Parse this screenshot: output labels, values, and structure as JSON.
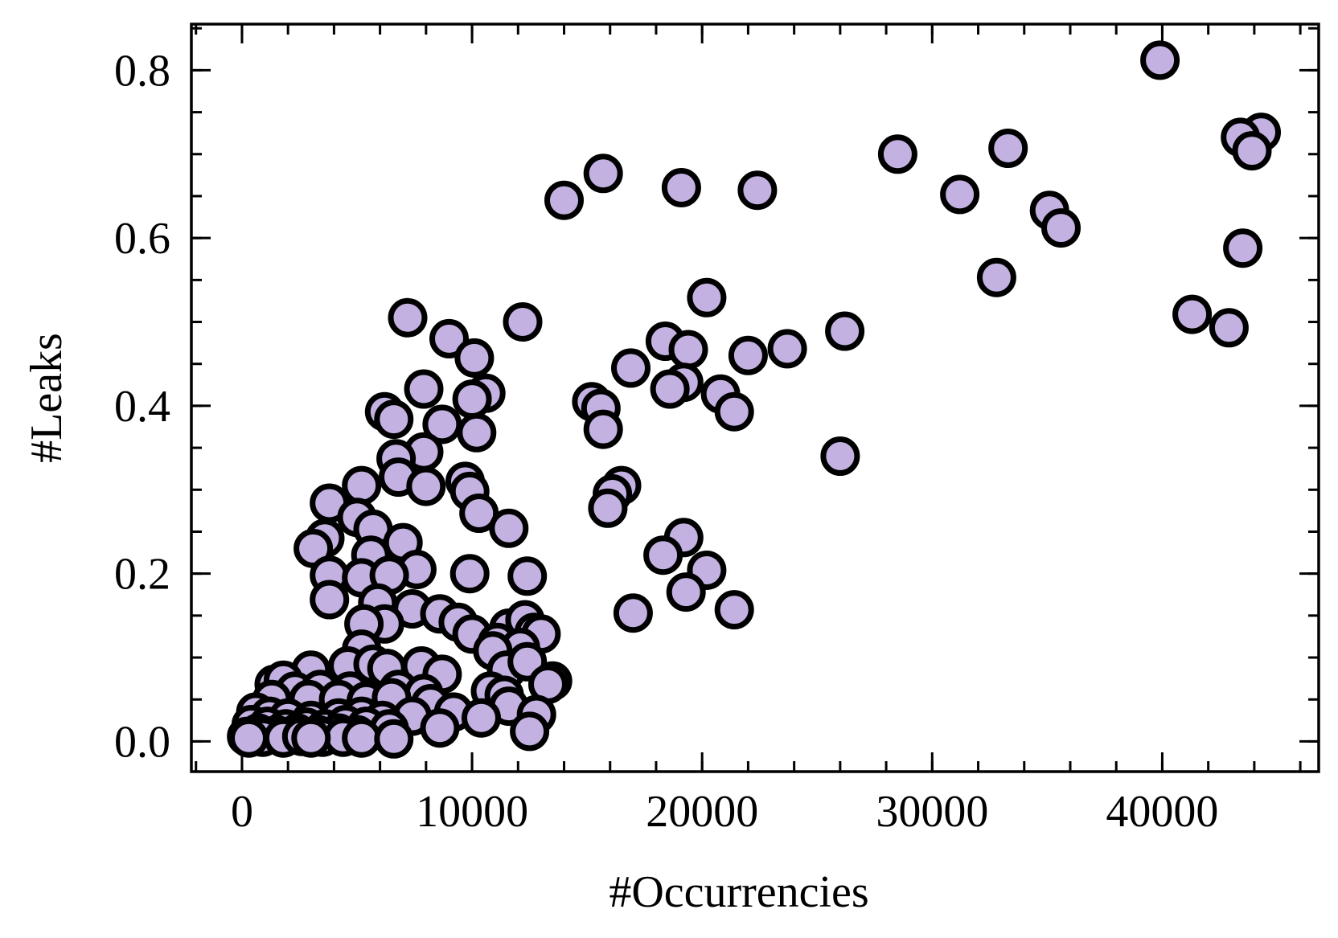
{
  "chart_data": {
    "type": "scatter",
    "title": "",
    "xlabel": "#Occurrencies",
    "ylabel": "#Leaks",
    "xlim": [
      -2200,
      46800
    ],
    "ylim": [
      -0.036,
      0.855
    ],
    "x_ticks": [
      0,
      10000,
      20000,
      30000,
      40000
    ],
    "x_tick_labels": [
      "0",
      "10000",
      "20000",
      "30000",
      "40000"
    ],
    "y_ticks": [
      0.0,
      0.2,
      0.4,
      0.6,
      0.8
    ],
    "y_tick_labels": [
      "0.0",
      "0.2",
      "0.4",
      "0.6",
      "0.8"
    ],
    "x_minor_step": 2000,
    "y_minor_step": 0.05,
    "grid": false,
    "legend": "none",
    "marker_fill": "#c3b1e1",
    "marker_edge": "#000000",
    "series": [
      {
        "points": [
          [
            39900,
            0.812
          ],
          [
            44300,
            0.726
          ],
          [
            43400,
            0.72
          ],
          [
            43900,
            0.704
          ],
          [
            43500,
            0.588
          ],
          [
            41300,
            0.509
          ],
          [
            42900,
            0.493
          ],
          [
            33300,
            0.707
          ],
          [
            28500,
            0.7
          ],
          [
            31200,
            0.652
          ],
          [
            35100,
            0.633
          ],
          [
            35600,
            0.612
          ],
          [
            32800,
            0.553
          ],
          [
            15700,
            0.677
          ],
          [
            19100,
            0.66
          ],
          [
            22400,
            0.657
          ],
          [
            14000,
            0.645
          ],
          [
            20200,
            0.529
          ],
          [
            26200,
            0.489
          ],
          [
            23700,
            0.468
          ],
          [
            18400,
            0.477
          ],
          [
            19400,
            0.467
          ],
          [
            22000,
            0.46
          ],
          [
            16900,
            0.445
          ],
          [
            19200,
            0.428
          ],
          [
            18600,
            0.42
          ],
          [
            20800,
            0.414
          ],
          [
            21400,
            0.393
          ],
          [
            15200,
            0.405
          ],
          [
            15600,
            0.397
          ],
          [
            15700,
            0.372
          ],
          [
            26000,
            0.34
          ],
          [
            16500,
            0.305
          ],
          [
            16100,
            0.295
          ],
          [
            15900,
            0.278
          ],
          [
            19200,
            0.243
          ],
          [
            18300,
            0.222
          ],
          [
            20200,
            0.204
          ],
          [
            19300,
            0.178
          ],
          [
            17000,
            0.153
          ],
          [
            21400,
            0.157
          ],
          [
            7200,
            0.505
          ],
          [
            12200,
            0.5
          ],
          [
            9000,
            0.48
          ],
          [
            10100,
            0.457
          ],
          [
            7900,
            0.42
          ],
          [
            10600,
            0.415
          ],
          [
            10000,
            0.408
          ],
          [
            6200,
            0.393
          ],
          [
            6600,
            0.384
          ],
          [
            8700,
            0.378
          ],
          [
            10200,
            0.368
          ],
          [
            7900,
            0.345
          ],
          [
            6700,
            0.337
          ],
          [
            6800,
            0.315
          ],
          [
            9700,
            0.31
          ],
          [
            8000,
            0.304
          ],
          [
            9900,
            0.298
          ],
          [
            5200,
            0.305
          ],
          [
            3800,
            0.284
          ],
          [
            10300,
            0.272
          ],
          [
            11600,
            0.254
          ],
          [
            5000,
            0.267
          ],
          [
            5700,
            0.253
          ],
          [
            3600,
            0.242
          ],
          [
            3100,
            0.23
          ],
          [
            7000,
            0.237
          ],
          [
            5600,
            0.222
          ],
          [
            7600,
            0.205
          ],
          [
            9900,
            0.2
          ],
          [
            12400,
            0.197
          ],
          [
            3800,
            0.198
          ],
          [
            5200,
            0.195
          ],
          [
            6400,
            0.198
          ],
          [
            3800,
            0.169
          ],
          [
            5900,
            0.165
          ],
          [
            7400,
            0.158
          ],
          [
            8600,
            0.152
          ],
          [
            9400,
            0.142
          ],
          [
            6200,
            0.14
          ],
          [
            5300,
            0.14
          ],
          [
            10000,
            0.128
          ],
          [
            11600,
            0.135
          ],
          [
            12300,
            0.145
          ],
          [
            12700,
            0.13
          ],
          [
            13000,
            0.128
          ],
          [
            11100,
            0.118
          ],
          [
            12100,
            0.112
          ],
          [
            10900,
            0.108
          ],
          [
            5200,
            0.11
          ],
          [
            4600,
            0.09
          ],
          [
            3000,
            0.085
          ],
          [
            5700,
            0.092
          ],
          [
            6300,
            0.087
          ],
          [
            7800,
            0.09
          ],
          [
            8700,
            0.08
          ],
          [
            11500,
            0.085
          ],
          [
            12400,
            0.095
          ],
          [
            13500,
            0.072
          ],
          [
            13300,
            0.068
          ],
          [
            1400,
            0.068
          ],
          [
            1800,
            0.073
          ],
          [
            2300,
            0.06
          ],
          [
            3400,
            0.062
          ],
          [
            4700,
            0.06
          ],
          [
            6800,
            0.062
          ],
          [
            7900,
            0.057
          ],
          [
            10800,
            0.06
          ],
          [
            11400,
            0.055
          ],
          [
            1300,
            0.05
          ],
          [
            2900,
            0.05
          ],
          [
            4200,
            0.05
          ],
          [
            5400,
            0.048
          ],
          [
            6500,
            0.052
          ],
          [
            8200,
            0.045
          ],
          [
            11600,
            0.042
          ],
          [
            12800,
            0.032
          ],
          [
            9200,
            0.035
          ],
          [
            10400,
            0.028
          ],
          [
            7400,
            0.03
          ],
          [
            600,
            0.035
          ],
          [
            1200,
            0.03
          ],
          [
            2000,
            0.028
          ],
          [
            3000,
            0.025
          ],
          [
            4200,
            0.028
          ],
          [
            5200,
            0.03
          ],
          [
            6100,
            0.025
          ],
          [
            8600,
            0.016
          ],
          [
            12500,
            0.012
          ],
          [
            400,
            0.02
          ],
          [
            1100,
            0.018
          ],
          [
            1900,
            0.015
          ],
          [
            2800,
            0.017
          ],
          [
            3600,
            0.015
          ],
          [
            4500,
            0.02
          ],
          [
            5400,
            0.018
          ],
          [
            6400,
            0.015
          ],
          [
            700,
            0.01
          ],
          [
            1500,
            0.008
          ],
          [
            2400,
            0.01
          ],
          [
            3300,
            0.008
          ],
          [
            4200,
            0.01
          ],
          [
            5000,
            0.008
          ],
          [
            200,
            0.006
          ],
          [
            900,
            0.005
          ],
          [
            1800,
            0.004
          ],
          [
            2600,
            0.006
          ],
          [
            3500,
            0.005
          ],
          [
            4400,
            0.005
          ],
          [
            5200,
            0.004
          ],
          [
            300,
            0.004
          ],
          [
            3000,
            0.004
          ],
          [
            6600,
            0.003
          ]
        ]
      }
    ]
  }
}
